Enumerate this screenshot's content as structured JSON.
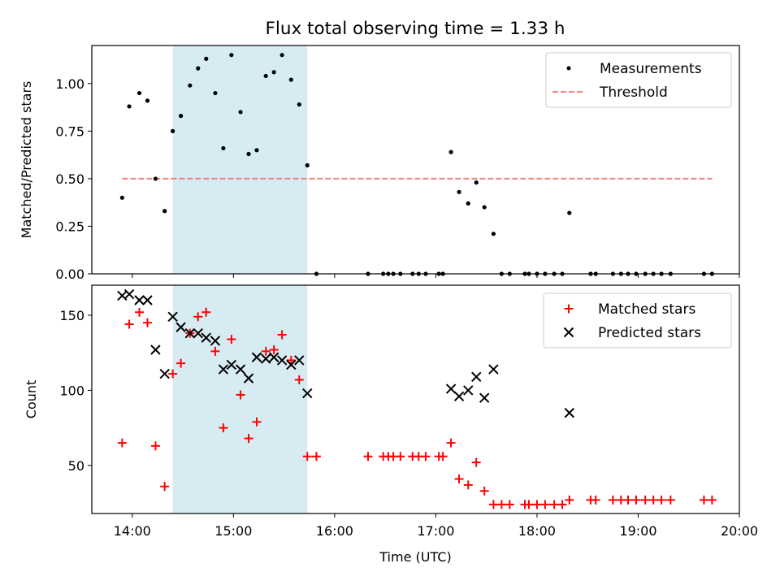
{
  "figure_title": "Flux total observing time = 1.33 h",
  "chart_data": [
    {
      "type": "scatter",
      "panel": "top",
      "ylabel": "Matched/Predicted stars",
      "xlim": [
        13.6,
        20.0
      ],
      "ylim": [
        0.0,
        1.2
      ],
      "yticks": [
        0.0,
        0.25,
        0.5,
        0.75,
        1.0
      ],
      "ytick_labels": [
        "0.00",
        "0.25",
        "0.50",
        "0.75",
        "1.00"
      ],
      "shaded_span": [
        14.4,
        15.73
      ],
      "legend_position": "upper right",
      "legend": [
        {
          "label": "Measurements",
          "marker": "dot"
        },
        {
          "label": "Threshold",
          "marker": "dashed-line"
        }
      ],
      "threshold": {
        "value": 0.5,
        "x_start": 13.9,
        "x_end": 19.73
      },
      "measurements": [
        [
          13.9,
          0.4
        ],
        [
          13.97,
          0.88
        ],
        [
          14.07,
          0.95
        ],
        [
          14.15,
          0.91
        ],
        [
          14.23,
          0.5
        ],
        [
          14.32,
          0.33
        ],
        [
          14.4,
          0.75
        ],
        [
          14.48,
          0.83
        ],
        [
          14.57,
          0.99
        ],
        [
          14.65,
          1.08
        ],
        [
          14.73,
          1.13
        ],
        [
          14.82,
          0.95
        ],
        [
          14.9,
          0.66
        ],
        [
          14.98,
          1.15
        ],
        [
          15.07,
          0.85
        ],
        [
          15.15,
          0.63
        ],
        [
          15.23,
          0.65
        ],
        [
          15.32,
          1.04
        ],
        [
          15.4,
          1.06
        ],
        [
          15.48,
          1.15
        ],
        [
          15.57,
          1.02
        ],
        [
          15.65,
          0.89
        ],
        [
          15.73,
          0.57
        ],
        [
          15.82,
          0.0
        ],
        [
          16.33,
          0.0
        ],
        [
          16.48,
          0.0
        ],
        [
          16.53,
          0.0
        ],
        [
          16.58,
          0.0
        ],
        [
          16.65,
          0.0
        ],
        [
          16.77,
          0.0
        ],
        [
          16.83,
          0.0
        ],
        [
          16.9,
          0.0
        ],
        [
          17.03,
          0.0
        ],
        [
          17.07,
          0.0
        ],
        [
          17.15,
          0.64
        ],
        [
          17.23,
          0.43
        ],
        [
          17.32,
          0.37
        ],
        [
          17.4,
          0.48
        ],
        [
          17.48,
          0.35
        ],
        [
          17.57,
          0.21
        ],
        [
          17.65,
          0.0
        ],
        [
          17.73,
          0.0
        ],
        [
          17.88,
          0.0
        ],
        [
          17.92,
          0.0
        ],
        [
          18.0,
          0.0
        ],
        [
          18.08,
          0.0
        ],
        [
          18.17,
          0.0
        ],
        [
          18.25,
          0.0
        ],
        [
          18.32,
          0.32
        ],
        [
          18.53,
          0.0
        ],
        [
          18.58,
          0.0
        ],
        [
          18.75,
          0.0
        ],
        [
          18.83,
          0.0
        ],
        [
          18.9,
          0.0
        ],
        [
          18.98,
          0.0
        ],
        [
          19.07,
          0.0
        ],
        [
          19.15,
          0.0
        ],
        [
          19.23,
          0.0
        ],
        [
          19.32,
          0.0
        ],
        [
          19.65,
          0.0
        ],
        [
          19.73,
          0.0
        ]
      ]
    },
    {
      "type": "scatter",
      "panel": "bottom",
      "xlabel": "Time (UTC)",
      "ylabel": "Count",
      "xlim": [
        13.6,
        20.0
      ],
      "ylim": [
        18,
        170
      ],
      "xticks": [
        14,
        15,
        16,
        17,
        18,
        19,
        20
      ],
      "xtick_labels": [
        "14:00",
        "15:00",
        "16:00",
        "17:00",
        "18:00",
        "19:00",
        "20:00"
      ],
      "yticks": [
        50,
        100,
        150
      ],
      "ytick_labels": [
        "50",
        "100",
        "150"
      ],
      "shaded_span": [
        14.4,
        15.73
      ],
      "legend_position": "upper right",
      "legend": [
        {
          "label": "Matched stars",
          "marker": "plus",
          "color": "#ff0000"
        },
        {
          "label": "Predicted stars",
          "marker": "x",
          "color": "#000000"
        }
      ],
      "series": [
        {
          "name": "Matched stars",
          "marker": "plus",
          "color": "#ff0000",
          "points": [
            [
              13.9,
              65
            ],
            [
              13.97,
              144
            ],
            [
              14.07,
              152
            ],
            [
              14.15,
              145
            ],
            [
              14.23,
              63
            ],
            [
              14.32,
              36
            ],
            [
              14.4,
              111
            ],
            [
              14.48,
              118
            ],
            [
              14.57,
              138
            ],
            [
              14.65,
              149
            ],
            [
              14.73,
              152
            ],
            [
              14.82,
              126
            ],
            [
              14.9,
              75
            ],
            [
              14.98,
              134
            ],
            [
              15.07,
              97
            ],
            [
              15.15,
              68
            ],
            [
              15.23,
              79
            ],
            [
              15.32,
              126
            ],
            [
              15.4,
              127
            ],
            [
              15.48,
              137
            ],
            [
              15.57,
              120
            ],
            [
              15.65,
              107
            ],
            [
              15.73,
              56
            ],
            [
              15.82,
              56
            ],
            [
              16.33,
              56
            ],
            [
              16.48,
              56
            ],
            [
              16.53,
              56
            ],
            [
              16.58,
              56
            ],
            [
              16.65,
              56
            ],
            [
              16.77,
              56
            ],
            [
              16.83,
              56
            ],
            [
              16.9,
              56
            ],
            [
              17.03,
              56
            ],
            [
              17.07,
              56
            ],
            [
              17.15,
              65
            ],
            [
              17.23,
              41
            ],
            [
              17.32,
              37
            ],
            [
              17.4,
              52
            ],
            [
              17.48,
              33
            ],
            [
              17.57,
              24
            ],
            [
              17.65,
              24
            ],
            [
              17.73,
              24
            ],
            [
              17.88,
              24
            ],
            [
              17.92,
              24
            ],
            [
              18.0,
              24
            ],
            [
              18.08,
              24
            ],
            [
              18.17,
              24
            ],
            [
              18.25,
              24
            ],
            [
              18.32,
              27
            ],
            [
              18.53,
              27
            ],
            [
              18.58,
              27
            ],
            [
              18.75,
              27
            ],
            [
              18.83,
              27
            ],
            [
              18.9,
              27
            ],
            [
              18.98,
              27
            ],
            [
              19.07,
              27
            ],
            [
              19.15,
              27
            ],
            [
              19.23,
              27
            ],
            [
              19.32,
              27
            ],
            [
              19.65,
              27
            ],
            [
              19.73,
              27
            ]
          ]
        },
        {
          "name": "Predicted stars",
          "marker": "x",
          "color": "#000000",
          "points": [
            [
              13.9,
              163
            ],
            [
              13.97,
              164
            ],
            [
              14.07,
              160
            ],
            [
              14.15,
              160
            ],
            [
              14.23,
              127
            ],
            [
              14.32,
              111
            ],
            [
              14.4,
              149
            ],
            [
              14.48,
              142
            ],
            [
              14.57,
              138
            ],
            [
              14.65,
              138
            ],
            [
              14.73,
              135
            ],
            [
              14.82,
              133
            ],
            [
              14.9,
              114
            ],
            [
              14.98,
              117
            ],
            [
              15.07,
              114
            ],
            [
              15.15,
              108
            ],
            [
              15.23,
              122
            ],
            [
              15.32,
              121
            ],
            [
              15.4,
              122
            ],
            [
              15.48,
              120
            ],
            [
              15.57,
              117
            ],
            [
              15.65,
              120
            ],
            [
              15.73,
              98
            ],
            [
              17.15,
              101
            ],
            [
              17.23,
              96
            ],
            [
              17.32,
              100
            ],
            [
              17.4,
              109
            ],
            [
              17.48,
              95
            ],
            [
              17.57,
              114
            ],
            [
              18.32,
              85
            ]
          ]
        }
      ]
    }
  ]
}
